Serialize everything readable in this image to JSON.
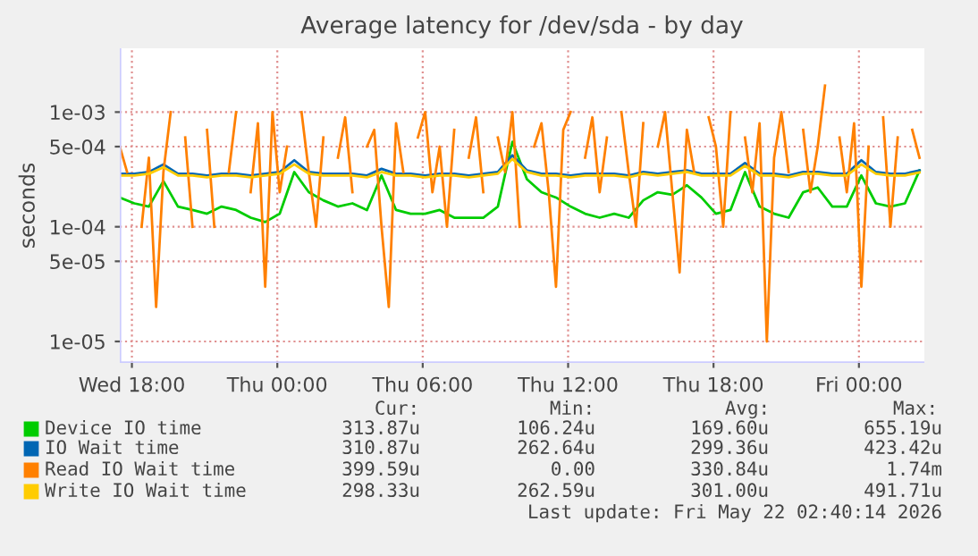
{
  "chart_data": {
    "type": "line",
    "title": "Average latency for /dev/sda - by day",
    "ylabel": "seconds",
    "log": "y",
    "grid": true,
    "legend": "bottom",
    "xlim": [
      "2026-05-20T17:30",
      "2026-05-22T02:42"
    ],
    "xticks": [
      {
        "value": "2026-05-20T18:00",
        "label": "Wed 18:00"
      },
      {
        "value": "2026-05-21T00:00",
        "label": "Thu 00:00"
      },
      {
        "value": "2026-05-21T06:00",
        "label": "Thu 06:00"
      },
      {
        "value": "2026-05-21T12:00",
        "label": "Thu 12:00"
      },
      {
        "value": "2026-05-21T18:00",
        "label": "Thu 18:00"
      },
      {
        "value": "2026-05-22T00:00",
        "label": "Fri 00:00"
      }
    ],
    "ylim": [
      6.5e-06,
      0.0036
    ],
    "yticks": [
      {
        "value": 1e-05,
        "label": "1e-05"
      },
      {
        "value": 5e-05,
        "label": "5e-05"
      },
      {
        "value": 0.0001,
        "label": "1e-04"
      },
      {
        "value": 0.0005,
        "label": "5e-04"
      },
      {
        "value": 0.001,
        "label": "1e-03"
      }
    ],
    "x": [
      "2026-05-20T17:30",
      "2026-05-20T18:06",
      "2026-05-20T18:42",
      "2026-05-20T19:18",
      "2026-05-20T19:54",
      "2026-05-20T20:30",
      "2026-05-20T21:06",
      "2026-05-20T21:42",
      "2026-05-20T22:18",
      "2026-05-20T22:54",
      "2026-05-20T23:30",
      "2026-05-21T00:06",
      "2026-05-21T00:42",
      "2026-05-21T01:18",
      "2026-05-21T01:54",
      "2026-05-21T02:30",
      "2026-05-21T03:06",
      "2026-05-21T03:42",
      "2026-05-21T04:18",
      "2026-05-21T04:54",
      "2026-05-21T05:30",
      "2026-05-21T06:06",
      "2026-05-21T06:42",
      "2026-05-21T07:18",
      "2026-05-21T07:54",
      "2026-05-21T08:30",
      "2026-05-21T09:06",
      "2026-05-21T09:42",
      "2026-05-21T10:18",
      "2026-05-21T10:54",
      "2026-05-21T11:30",
      "2026-05-21T12:06",
      "2026-05-21T12:42",
      "2026-05-21T13:18",
      "2026-05-21T13:54",
      "2026-05-21T14:30",
      "2026-05-21T15:06",
      "2026-05-21T15:42",
      "2026-05-21T16:18",
      "2026-05-21T16:54",
      "2026-05-21T17:30",
      "2026-05-21T18:06",
      "2026-05-21T18:42",
      "2026-05-21T19:18",
      "2026-05-21T19:54",
      "2026-05-21T20:30",
      "2026-05-21T21:06",
      "2026-05-21T21:42",
      "2026-05-21T22:18",
      "2026-05-21T22:54",
      "2026-05-21T23:30",
      "2026-05-22T00:06",
      "2026-05-22T00:42",
      "2026-05-22T01:18",
      "2026-05-22T01:54",
      "2026-05-22T02:30"
    ],
    "series": [
      {
        "name": "Device IO time",
        "color": "#00cc00",
        "values": [
          0.00018,
          0.00016,
          0.00015,
          0.00025,
          0.00015,
          0.00014,
          0.00013,
          0.00015,
          0.00014,
          0.00012,
          0.00011,
          0.00013,
          0.0003,
          0.0002,
          0.00017,
          0.00015,
          0.00016,
          0.00014,
          0.00028,
          0.00014,
          0.00013,
          0.00013,
          0.00014,
          0.00012,
          0.00012,
          0.00012,
          0.00015,
          0.00055,
          0.00026,
          0.0002,
          0.00018,
          0.00015,
          0.00013,
          0.00012,
          0.00013,
          0.00012,
          0.00017,
          0.0002,
          0.00019,
          0.00023,
          0.00018,
          0.00013,
          0.00014,
          0.0003,
          0.00015,
          0.00013,
          0.00012,
          0.0002,
          0.00022,
          0.00015,
          0.00015,
          0.00028,
          0.00016,
          0.00015,
          0.00016,
          0.00031
        ]
      },
      {
        "name": "IO Wait time",
        "color": "#0066b3",
        "values": [
          0.00029,
          0.00029,
          0.0003,
          0.00035,
          0.00029,
          0.00029,
          0.00028,
          0.00029,
          0.00029,
          0.00028,
          0.00029,
          0.0003,
          0.00038,
          0.0003,
          0.00029,
          0.00029,
          0.00029,
          0.00028,
          0.00032,
          0.00029,
          0.00029,
          0.00028,
          0.00029,
          0.00029,
          0.00028,
          0.00029,
          0.0003,
          0.00042,
          0.00031,
          0.00029,
          0.00029,
          0.00028,
          0.00029,
          0.00029,
          0.00029,
          0.00028,
          0.0003,
          0.00029,
          0.0003,
          0.00031,
          0.00029,
          0.00029,
          0.00029,
          0.00036,
          0.00029,
          0.00029,
          0.00028,
          0.0003,
          0.0003,
          0.00029,
          0.00029,
          0.00038,
          0.0003,
          0.00029,
          0.00029,
          0.00031
        ]
      },
      {
        "name": "Read IO Wait time",
        "color": "#ff8000",
        "x": [
          "2026-05-20T17:30",
          "2026-05-20T17:48",
          "2026-05-20T18:06",
          "2026-05-20T18:24",
          "2026-05-20T18:42",
          "2026-05-20T19:00",
          "2026-05-20T19:18",
          "2026-05-20T19:36",
          "2026-05-20T19:54",
          "2026-05-20T20:12",
          "2026-05-20T20:30",
          "2026-05-20T20:48",
          "2026-05-20T21:06",
          "2026-05-20T21:24",
          "2026-05-20T21:42",
          "2026-05-20T22:00",
          "2026-05-20T22:18",
          "2026-05-20T22:36",
          "2026-05-20T22:54",
          "2026-05-20T23:12",
          "2026-05-20T23:30",
          "2026-05-20T23:48",
          "2026-05-21T00:06",
          "2026-05-21T00:24",
          "2026-05-21T00:42",
          "2026-05-21T01:00",
          "2026-05-21T01:18",
          "2026-05-21T01:36",
          "2026-05-21T01:54",
          "2026-05-21T02:12",
          "2026-05-21T02:30",
          "2026-05-21T02:48",
          "2026-05-21T03:06",
          "2026-05-21T03:24",
          "2026-05-21T03:42",
          "2026-05-21T04:00",
          "2026-05-21T04:18",
          "2026-05-21T04:36",
          "2026-05-21T04:54",
          "2026-05-21T05:12",
          "2026-05-21T05:30",
          "2026-05-21T05:48",
          "2026-05-21T06:06",
          "2026-05-21T06:24",
          "2026-05-21T06:42",
          "2026-05-21T07:00",
          "2026-05-21T07:18",
          "2026-05-21T07:36",
          "2026-05-21T07:54",
          "2026-05-21T08:12",
          "2026-05-21T08:30",
          "2026-05-21T08:48",
          "2026-05-21T09:06",
          "2026-05-21T09:24",
          "2026-05-21T09:42",
          "2026-05-21T10:00",
          "2026-05-21T10:18",
          "2026-05-21T10:36",
          "2026-05-21T10:54",
          "2026-05-21T11:12",
          "2026-05-21T11:30",
          "2026-05-21T11:48",
          "2026-05-21T12:06",
          "2026-05-21T12:24",
          "2026-05-21T12:42",
          "2026-05-21T13:00",
          "2026-05-21T13:18",
          "2026-05-21T13:36",
          "2026-05-21T13:54",
          "2026-05-21T14:12",
          "2026-05-21T14:30",
          "2026-05-21T14:48",
          "2026-05-21T15:06",
          "2026-05-21T15:24",
          "2026-05-21T15:42",
          "2026-05-21T16:00",
          "2026-05-21T16:18",
          "2026-05-21T16:36",
          "2026-05-21T16:54",
          "2026-05-21T17:12",
          "2026-05-21T17:30",
          "2026-05-21T17:48",
          "2026-05-21T18:06",
          "2026-05-21T18:24",
          "2026-05-21T18:42",
          "2026-05-21T19:00",
          "2026-05-21T19:18",
          "2026-05-21T19:36",
          "2026-05-21T19:54",
          "2026-05-21T20:12",
          "2026-05-21T20:30",
          "2026-05-21T20:48",
          "2026-05-21T21:06",
          "2026-05-21T21:24",
          "2026-05-21T21:42",
          "2026-05-21T22:00",
          "2026-05-21T22:18",
          "2026-05-21T22:36",
          "2026-05-21T22:54",
          "2026-05-21T23:12",
          "2026-05-21T23:30",
          "2026-05-21T23:48",
          "2026-05-22T00:06",
          "2026-05-22T00:24",
          "2026-05-22T00:42",
          "2026-05-22T01:00",
          "2026-05-22T01:18",
          "2026-05-22T01:36",
          "2026-05-22T01:54",
          "2026-05-22T02:12",
          "2026-05-22T02:30"
        ],
        "values": [
          0.0005,
          0.0003,
          null,
          0.0001,
          0.0004,
          2e-05,
          0.0003,
          0.001,
          null,
          0.0006,
          0.0001,
          null,
          0.0007,
          0.0001,
          null,
          0.0003,
          0.001,
          null,
          0.0002,
          0.0008,
          3e-05,
          0.001,
          0.0002,
          0.0005,
          null,
          0.001,
          0.0003,
          0.0001,
          0.0006,
          null,
          0.0004,
          0.0009,
          0.0002,
          null,
          0.0005,
          0.0007,
          0.0001,
          2e-05,
          0.0008,
          0.0003,
          null,
          0.0006,
          0.001,
          0.0002,
          0.0005,
          0.0001,
          0.0007,
          null,
          0.0004,
          0.0009,
          0.0002,
          null,
          0.0006,
          0.0003,
          0.001,
          0.0001,
          null,
          0.0005,
          0.0008,
          0.0002,
          3e-05,
          0.0007,
          0.001,
          null,
          0.0004,
          0.0009,
          0.0002,
          0.0006,
          null,
          0.001,
          0.0003,
          0.0001,
          0.0008,
          null,
          0.0005,
          0.001,
          0.0002,
          4e-05,
          0.0007,
          0.0003,
          null,
          0.0009,
          0.0005,
          0.0001,
          0.001,
          null,
          0.0006,
          0.0002,
          0.0008,
          1e-05,
          0.0004,
          0.001,
          0.0003,
          null,
          0.0007,
          0.0002,
          0.0005,
          0.0017,
          null,
          0.0006,
          0.0002,
          0.0008,
          3e-05,
          0.0005,
          null,
          0.0009,
          0.0001,
          0.0006,
          null,
          0.0007,
          0.0004
        ]
      },
      {
        "name": "Write IO Wait time",
        "color": "#ffcc00",
        "values": [
          0.00028,
          0.00028,
          0.00029,
          0.00033,
          0.00028,
          0.00028,
          0.00027,
          0.00028,
          0.00028,
          0.00027,
          0.00028,
          0.00029,
          0.00035,
          0.00029,
          0.00028,
          0.00028,
          0.00028,
          0.00027,
          0.0003,
          0.00028,
          0.00028,
          0.00027,
          0.00028,
          0.00028,
          0.00027,
          0.00028,
          0.00029,
          0.00039,
          0.0003,
          0.00028,
          0.00028,
          0.00027,
          0.00028,
          0.00028,
          0.00028,
          0.00027,
          0.00029,
          0.00028,
          0.00029,
          0.0003,
          0.00028,
          0.00028,
          0.00028,
          0.00034,
          0.00028,
          0.00028,
          0.00027,
          0.00029,
          0.00029,
          0.00028,
          0.00028,
          0.00035,
          0.00029,
          0.00028,
          0.00028,
          0.000298
        ]
      }
    ],
    "annotations": [
      "Cur:",
      "Min:",
      "Avg:",
      "Max:",
      "313.87u",
      "106.24u",
      "169.60u",
      "655.19u",
      "310.87u",
      "262.64u",
      "299.36u",
      "423.42u",
      "399.59u",
      "0.00",
      "330.84u",
      "1.74m",
      "298.33u",
      "262.59u",
      "301.00u",
      "491.71u",
      "Last update: Fri May 22 02:40:14 2026"
    ]
  }
}
